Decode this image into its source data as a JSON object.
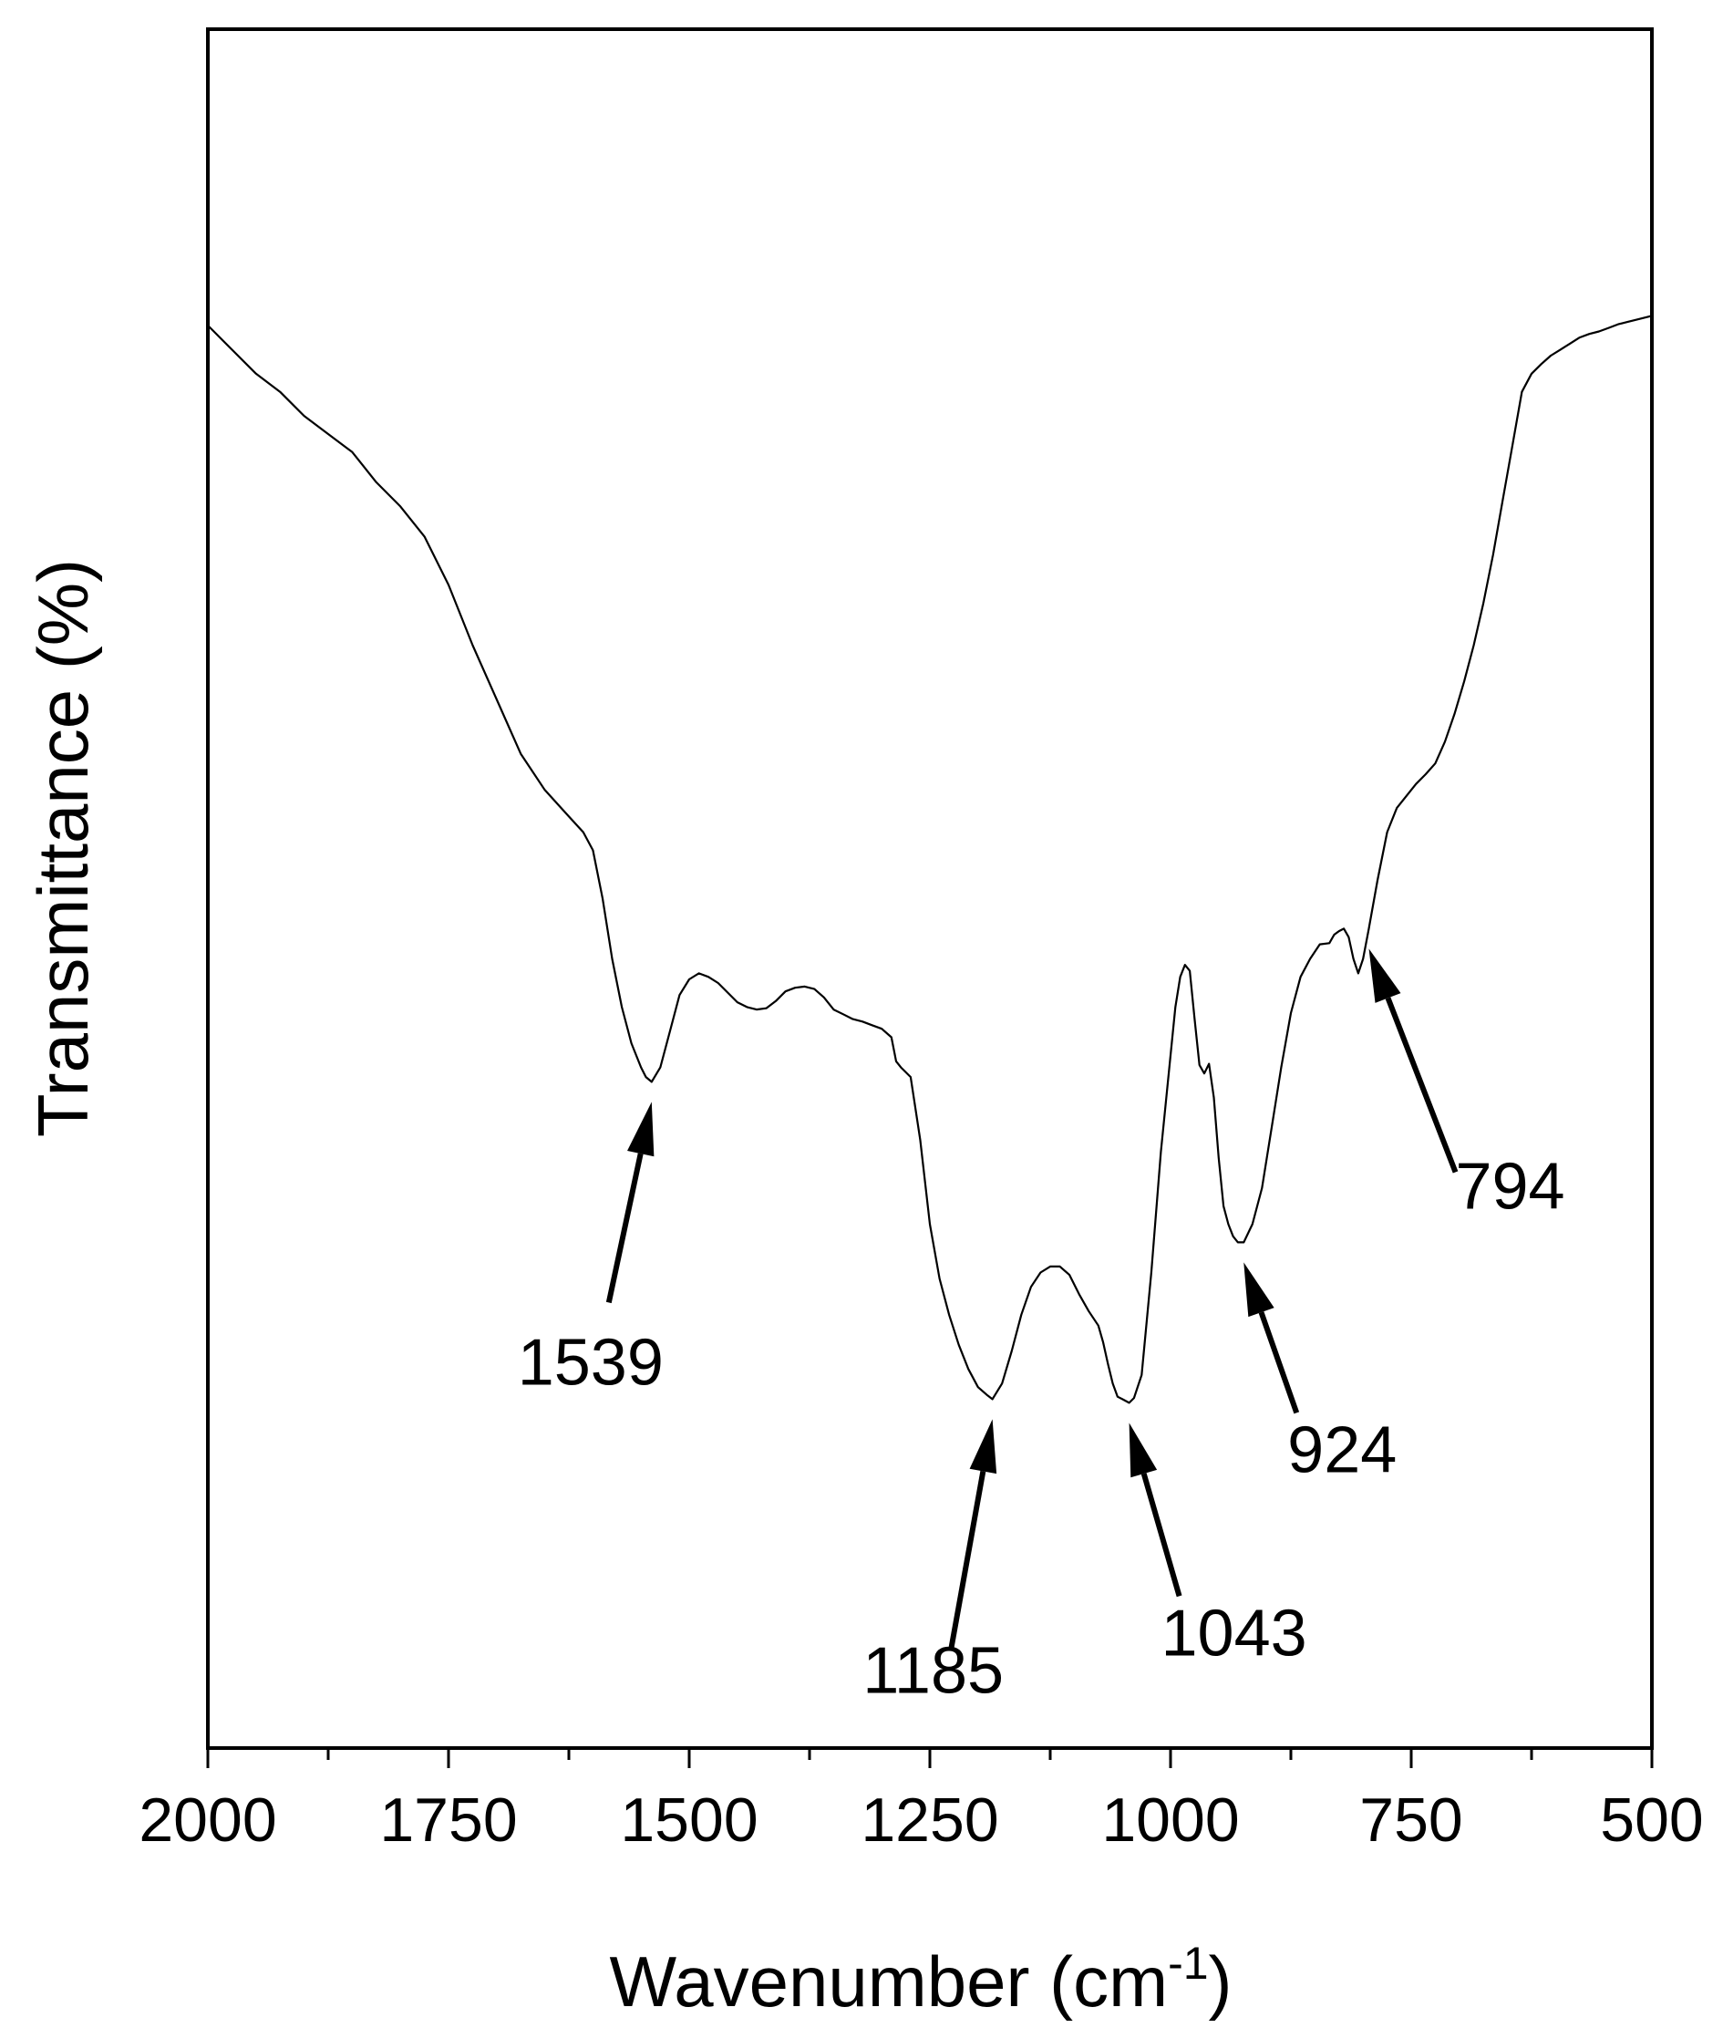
{
  "chart_data": {
    "type": "line",
    "title": "",
    "xlabel": "Wavenumber (cm",
    "xlabel_sup": "-1",
    "xlabel_close": ")",
    "ylabel": "Transmittance (%)",
    "xlim": [
      2000,
      500
    ],
    "ylim": [
      0,
      100
    ],
    "x_reversed": true,
    "x_ticks": [
      "2000",
      "1750",
      "1500",
      "1250",
      "1000",
      "750",
      "500"
    ],
    "y_ticks": [],
    "grid": false,
    "legend": "none",
    "colors": {
      "line": "#000000",
      "axis": "#000000",
      "background": "#ffffff"
    },
    "series": [
      {
        "x": [
          2000,
          1975,
          1950,
          1925,
          1900,
          1875,
          1850,
          1825,
          1800,
          1775,
          1750,
          1725,
          1700,
          1675,
          1650,
          1625,
          1610,
          1600,
          1590,
          1580,
          1570,
          1560,
          1550,
          1545,
          1539,
          1530,
          1520,
          1510,
          1500,
          1490,
          1480,
          1470,
          1460,
          1450,
          1440,
          1430,
          1420,
          1410,
          1400,
          1390,
          1380,
          1370,
          1360,
          1350,
          1340,
          1330,
          1320,
          1310,
          1300,
          1290,
          1285,
          1280,
          1270,
          1260,
          1250,
          1240,
          1230,
          1220,
          1210,
          1200,
          1190,
          1185,
          1175,
          1165,
          1155,
          1145,
          1135,
          1125,
          1115,
          1105,
          1095,
          1085,
          1075,
          1070,
          1065,
          1060,
          1055,
          1050,
          1043,
          1038,
          1030,
          1020,
          1010,
          1000,
          995,
          990,
          985,
          980,
          975,
          970,
          965,
          960,
          955,
          950,
          945,
          940,
          935,
          930,
          924,
          915,
          905,
          895,
          885,
          875,
          865,
          855,
          845,
          835,
          830,
          825,
          820,
          815,
          810,
          805,
          800,
          794,
          785,
          775,
          765,
          755,
          745,
          735,
          725,
          715,
          705,
          695,
          685,
          675,
          665,
          655,
          645,
          635,
          625,
          615,
          605,
          595,
          585,
          575,
          565,
          555,
          545,
          535,
          525,
          515,
          505,
          500
        ],
        "y": [
          89.5,
          87.5,
          85.5,
          84.0,
          82.0,
          80.5,
          79.0,
          76.5,
          74.5,
          72.0,
          68.0,
          63.0,
          58.5,
          54.0,
          51.0,
          48.8,
          47.5,
          46.0,
          42.0,
          37.0,
          33.0,
          30.0,
          28.0,
          27.2,
          26.8,
          28.0,
          31.0,
          34.0,
          35.3,
          35.8,
          35.5,
          35.0,
          34.2,
          33.4,
          33.0,
          32.8,
          32.9,
          33.5,
          34.3,
          34.6,
          34.7,
          34.5,
          33.8,
          32.8,
          32.4,
          32.0,
          31.8,
          31.5,
          31.2,
          30.5,
          28.5,
          28.0,
          27.2,
          22.0,
          15.0,
          10.5,
          7.5,
          5.0,
          3.0,
          1.5,
          0.8,
          0.5,
          1.8,
          4.5,
          7.5,
          9.8,
          11.0,
          11.5,
          11.5,
          10.8,
          9.2,
          7.8,
          6.6,
          5.2,
          3.4,
          1.8,
          0.7,
          0.5,
          0.2,
          0.6,
          2.5,
          11.0,
          21.0,
          29.0,
          33.0,
          35.5,
          36.5,
          36.0,
          32.0,
          28.2,
          27.5,
          28.3,
          25.5,
          20.5,
          16.5,
          15.0,
          14.0,
          13.5,
          13.5,
          15.0,
          18.0,
          23.0,
          28.0,
          32.5,
          35.5,
          37.0,
          38.2,
          38.3,
          39.0,
          39.3,
          39.5,
          38.8,
          37.0,
          35.8,
          37.0,
          39.5,
          43.5,
          47.5,
          49.5,
          50.5,
          51.5,
          52.3,
          53.2,
          55.0,
          57.3,
          60.0,
          63.0,
          66.5,
          70.5,
          75.0,
          79.5,
          84.0,
          85.5,
          86.3,
          87.0,
          87.5,
          88.0,
          88.5,
          88.8,
          89.0,
          89.3,
          89.6,
          89.8,
          90.0,
          90.2,
          90.3
        ]
      }
    ],
    "annotations": [
      {
        "label": "1539",
        "x": 1539
      },
      {
        "label": "1185",
        "x": 1185
      },
      {
        "label": "1043",
        "x": 1043
      },
      {
        "label": "924",
        "x": 924
      },
      {
        "label": "794",
        "x": 794
      }
    ]
  }
}
